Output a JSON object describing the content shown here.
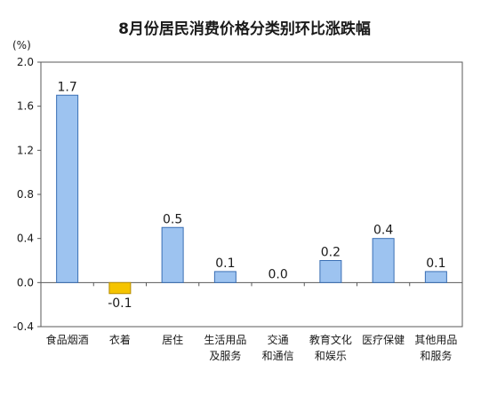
{
  "chart_data": {
    "type": "bar",
    "title": "8月份居民消费价格分类别环比涨跌幅",
    "unit": "(%)",
    "categories": [
      [
        "食品烟酒"
      ],
      [
        "衣着"
      ],
      [
        "居住"
      ],
      [
        "生活用品",
        "及服务"
      ],
      [
        "交通",
        "和通信"
      ],
      [
        "教育文化",
        "和娱乐"
      ],
      [
        "医疗保健"
      ],
      [
        "其他用品",
        "和服务"
      ]
    ],
    "values": [
      1.7,
      -0.1,
      0.5,
      0.1,
      0.0,
      0.2,
      0.4,
      0.1
    ],
    "value_labels": [
      "1.7",
      "-0.1",
      "0.5",
      "0.1",
      "0.0",
      "0.2",
      "0.4",
      "0.1"
    ],
    "ylim": [
      -0.4,
      2.0
    ],
    "yticks": [
      "-0.4",
      "0.0",
      "0.4",
      "0.8",
      "1.2",
      "1.6",
      "2.0"
    ],
    "xlabel": "",
    "ylabel": "",
    "grid": false,
    "colors": {
      "positive": "#9DC3F0",
      "negative": "#F5C400",
      "bar_stroke": "#3A6FB5",
      "axis": "#595959"
    }
  }
}
